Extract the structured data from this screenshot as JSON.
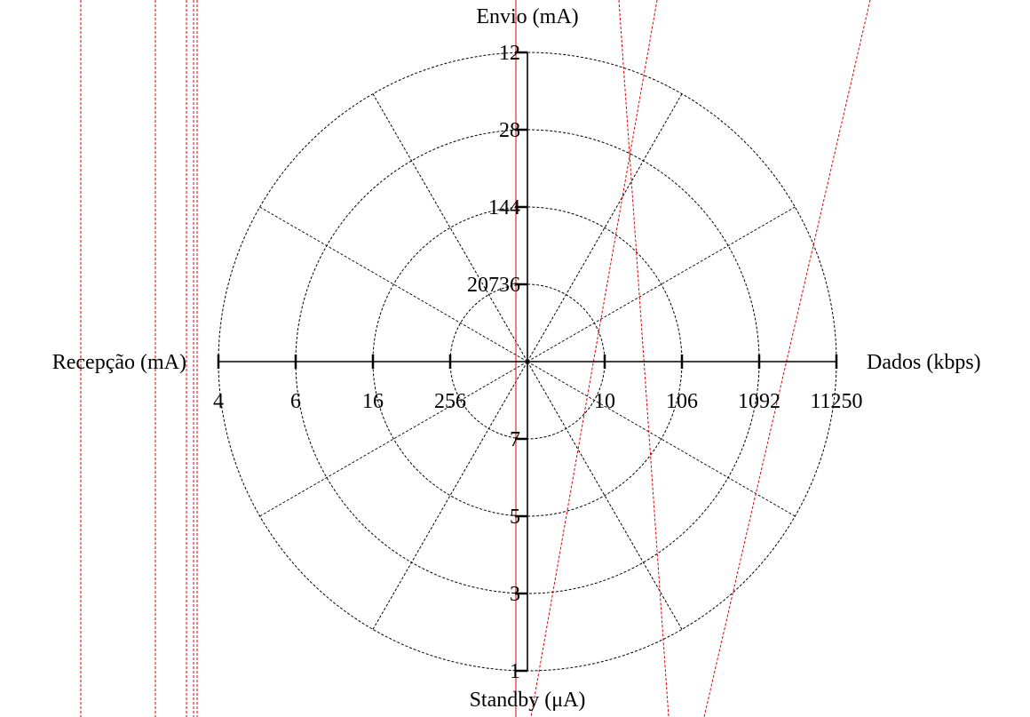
{
  "chart_data": {
    "type": "radar",
    "axes": [
      {
        "key": "dados",
        "label": "Dados (kbps)",
        "direction": "right",
        "ticks": [
          "10",
          "106",
          "1092",
          "11250"
        ]
      },
      {
        "key": "envio",
        "label": "Envio (mA)",
        "direction": "top",
        "ticks": [
          "20736",
          "144",
          "28",
          "12"
        ]
      },
      {
        "key": "recepcao",
        "label": "Recepção (mA)",
        "direction": "left",
        "ticks": [
          "256",
          "16",
          "6",
          "4"
        ]
      },
      {
        "key": "standby",
        "label": "Standby (μA)",
        "direction": "bottom",
        "ticks": [
          "7",
          "5",
          "3",
          "1"
        ]
      }
    ],
    "rings": 4,
    "spokes": 12,
    "grid": true
  }
}
